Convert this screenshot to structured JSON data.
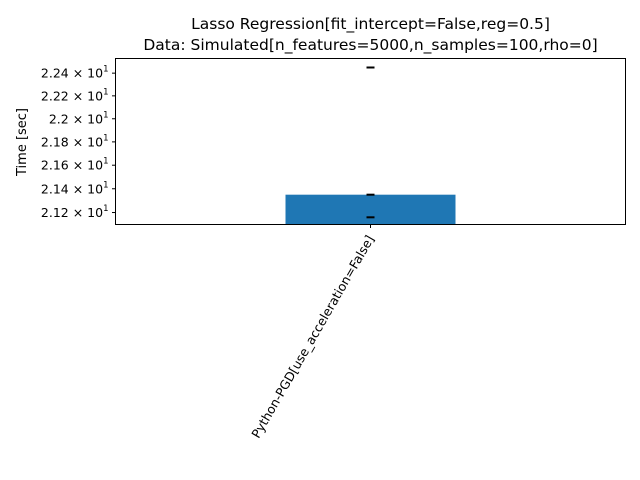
{
  "chart_data": {
    "type": "bar",
    "title_line1": "Lasso Regression[fit_intercept=False,reg=0.5]",
    "title_line2": "Data: Simulated[n_features=5000,n_samples=100,rho=0]",
    "xlabel": "",
    "ylabel": "Time [sec]",
    "yscale": "log",
    "ylim": [
      21.1,
      22.53
    ],
    "yticks": [
      {
        "value": 21.2,
        "mantissa": "2.12"
      },
      {
        "value": 21.4,
        "mantissa": "2.14"
      },
      {
        "value": 21.6,
        "mantissa": "2.16"
      },
      {
        "value": 21.8,
        "mantissa": "2.18"
      },
      {
        "value": 22.0,
        "mantissa": "2.2"
      },
      {
        "value": 22.2,
        "mantissa": "2.22"
      },
      {
        "value": 22.4,
        "mantissa": "2.24"
      }
    ],
    "ytick_multiplier": "× 10",
    "ytick_exponent": "1",
    "categories": [
      "Python-PGD[use_acceleration=False]"
    ],
    "values": [
      21.35
    ],
    "run_markers": [
      [
        22.45,
        21.35,
        21.16
      ]
    ],
    "bar_color": "#1f77b4",
    "grid": false,
    "legend": "none"
  }
}
